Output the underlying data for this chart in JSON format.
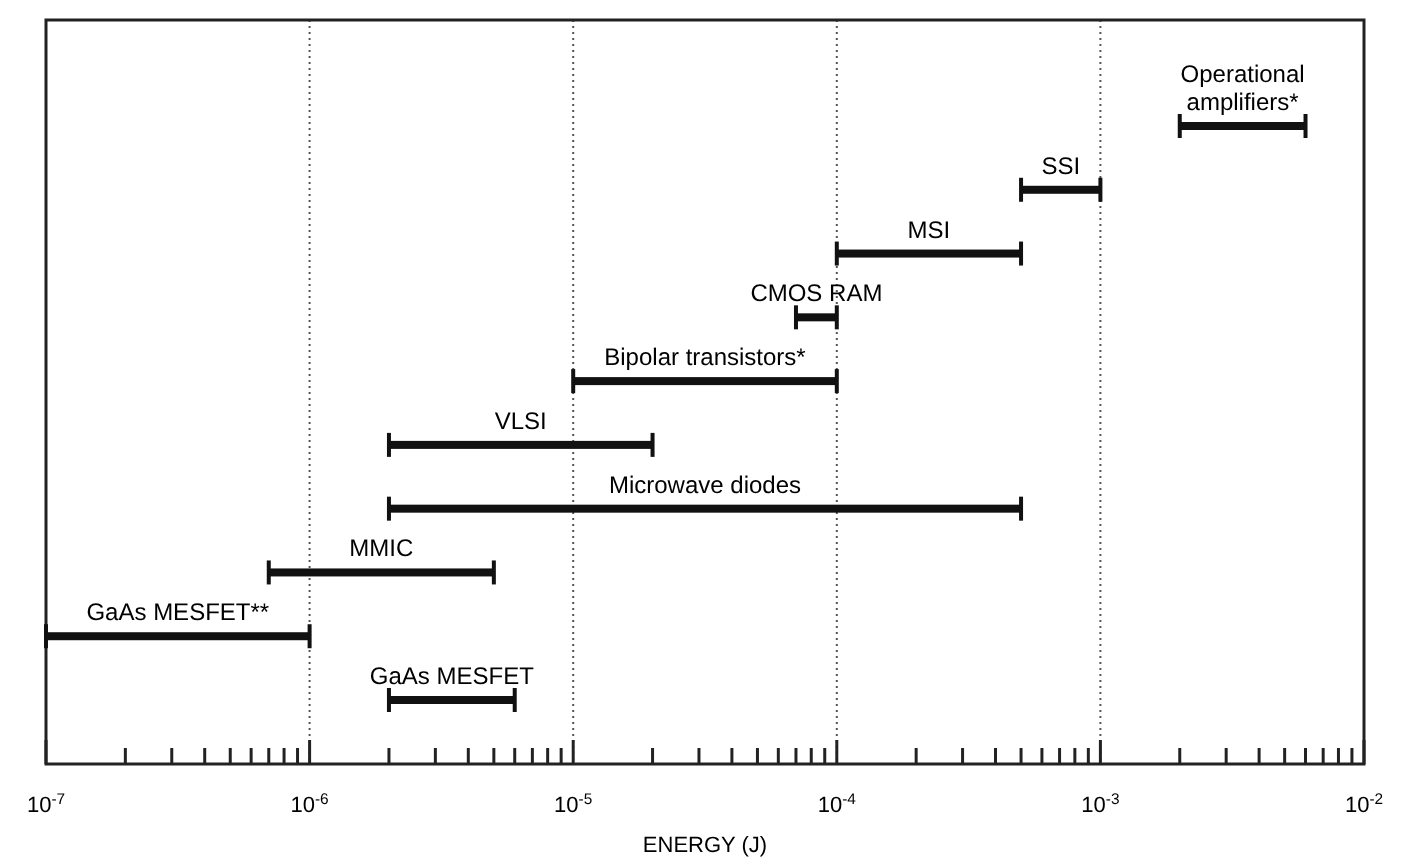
{
  "chart_data": {
    "type": "bar",
    "orientation": "horizontal",
    "log": "x",
    "xlabel": "ENERGY (J)",
    "categories": [
      "Operational\namplifiers*",
      "SSI",
      "MSI",
      "CMOS RAM",
      "Bipolar transistors*",
      "VLSI",
      "Microwave diodes",
      "MMIC",
      "GaAs MESFET**",
      "GaAs MESFET"
    ],
    "base": [
      0.002,
      0.0005,
      0.0001,
      7e-05,
      1e-05,
      2e-06,
      2e-06,
      7e-07,
      1e-07,
      2e-06
    ],
    "values": [
      0.004,
      0.0005,
      0.0004,
      3e-05,
      9e-05,
      1.8e-05,
      0.000498,
      4.3e-06,
      9e-07,
      4e-06
    ],
    "color": "#111111",
    "xlim": [
      1e-07,
      0.01
    ],
    "xticks": [
      {
        "value": 1e-07,
        "label": "10$^{-7}$"
      },
      {
        "value": 2e-07,
        "label": null
      },
      {
        "value": 3e-07,
        "label": null
      },
      {
        "value": 4e-07,
        "label": null
      },
      {
        "value": 5e-07,
        "label": null
      },
      {
        "value": 6e-07,
        "label": null
      },
      {
        "value": 7e-07,
        "label": null
      },
      {
        "value": 8e-07,
        "label": null
      },
      {
        "value": 9e-07,
        "label": null
      },
      {
        "value": 1e-06,
        "label": "10$^{-6}$"
      },
      {
        "value": 2e-06,
        "label": null
      },
      {
        "value": 3e-06,
        "label": null
      },
      {
        "value": 4e-06,
        "label": null
      },
      {
        "value": 5e-06,
        "label": null
      },
      {
        "value": 6e-06,
        "label": null
      },
      {
        "value": 7e-06,
        "label": null
      },
      {
        "value": 8e-06,
        "label": null
      },
      {
        "value": 9e-06,
        "label": null
      },
      {
        "value": 1e-05,
        "label": "10$^{-5}$"
      },
      {
        "value": 2e-05,
        "label": null
      },
      {
        "value": 3e-05,
        "label": null
      },
      {
        "value": 4e-05,
        "label": null
      },
      {
        "value": 5e-05,
        "label": null
      },
      {
        "value": 6e-05,
        "label": null
      },
      {
        "value": 7e-05,
        "label": null
      },
      {
        "value": 8e-05,
        "label": null
      },
      {
        "value": 9e-05,
        "label": null
      },
      {
        "value": 0.0001,
        "label": "10$^{-4}$"
      },
      {
        "value": 0.0002,
        "label": null
      },
      {
        "value": 0.0003,
        "label": null
      },
      {
        "value": 0.0004,
        "label": null
      },
      {
        "value": 0.0005,
        "label": null
      },
      {
        "value": 0.0006,
        "label": null
      },
      {
        "value": 0.0007,
        "label": null
      },
      {
        "value": 0.0008,
        "label": null
      },
      {
        "value": 0.0009,
        "label": null
      },
      {
        "value": 0.001,
        "label": "10$^{-3}$"
      },
      {
        "value": 0.002,
        "label": null
      },
      {
        "value": 0.003,
        "label": null
      },
      {
        "value": 0.004,
        "label": null
      },
      {
        "value": 0.005,
        "label": null
      },
      {
        "value": 0.006,
        "label": null
      },
      {
        "value": 0.007,
        "label": null
      },
      {
        "value": 0.008,
        "label": null
      },
      {
        "value": 0.009,
        "label": null
      },
      {
        "value": 0.01,
        "label": "10$^{-2}$"
      }
    ],
    "grid": "x",
    "tick_labels": "x"
  }
}
